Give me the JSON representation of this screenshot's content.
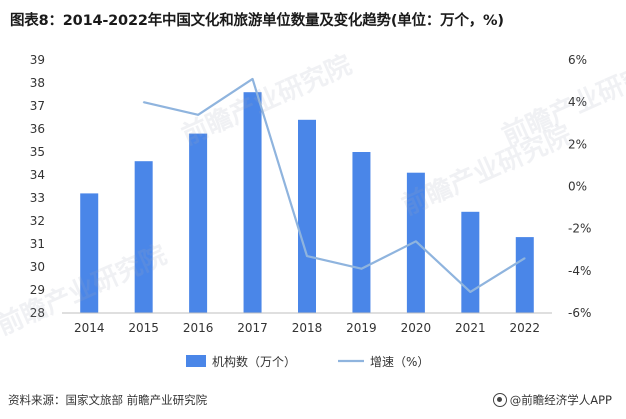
{
  "title": "图表8：2014-2022年中国文化和旅游单位数量及变化趋势(单位：万个，%)",
  "footer": {
    "source": "资料来源：国家文旅部 前瞻产业研究院",
    "brand": "@前瞻经济学人APP"
  },
  "watermark_text": "前瞻产业研究院",
  "colors": {
    "bar": "#4a86e8",
    "line": "#8fb4de",
    "axis": "#bfbfbf"
  },
  "chart_data": {
    "type": "bar",
    "categories": [
      "2014",
      "2015",
      "2016",
      "2017",
      "2018",
      "2019",
      "2020",
      "2021",
      "2022"
    ],
    "series": [
      {
        "name": "机构数（万个）",
        "type": "bar",
        "axis": "left",
        "values": [
          33.2,
          34.6,
          35.8,
          37.6,
          36.4,
          35.0,
          34.1,
          32.4,
          31.3
        ]
      },
      {
        "name": "增速（%）",
        "type": "line",
        "axis": "right",
        "values": [
          null,
          4.0,
          3.4,
          5.1,
          -3.3,
          -3.9,
          -2.6,
          -5.0,
          -3.4
        ]
      }
    ],
    "left_axis": {
      "min": 28,
      "max": 39,
      "step": 1,
      "ticks": [
        "28",
        "29",
        "30",
        "31",
        "32",
        "33",
        "34",
        "35",
        "36",
        "37",
        "38",
        "39"
      ]
    },
    "right_axis": {
      "min": -6,
      "max": 6,
      "step": 2,
      "ticks": [
        "-6%",
        "-4%",
        "-2%",
        "0%",
        "2%",
        "4%",
        "6%"
      ]
    },
    "legend": [
      "机构数（万个）",
      "增速（%）"
    ],
    "legend_position": "bottom",
    "grid": false
  }
}
